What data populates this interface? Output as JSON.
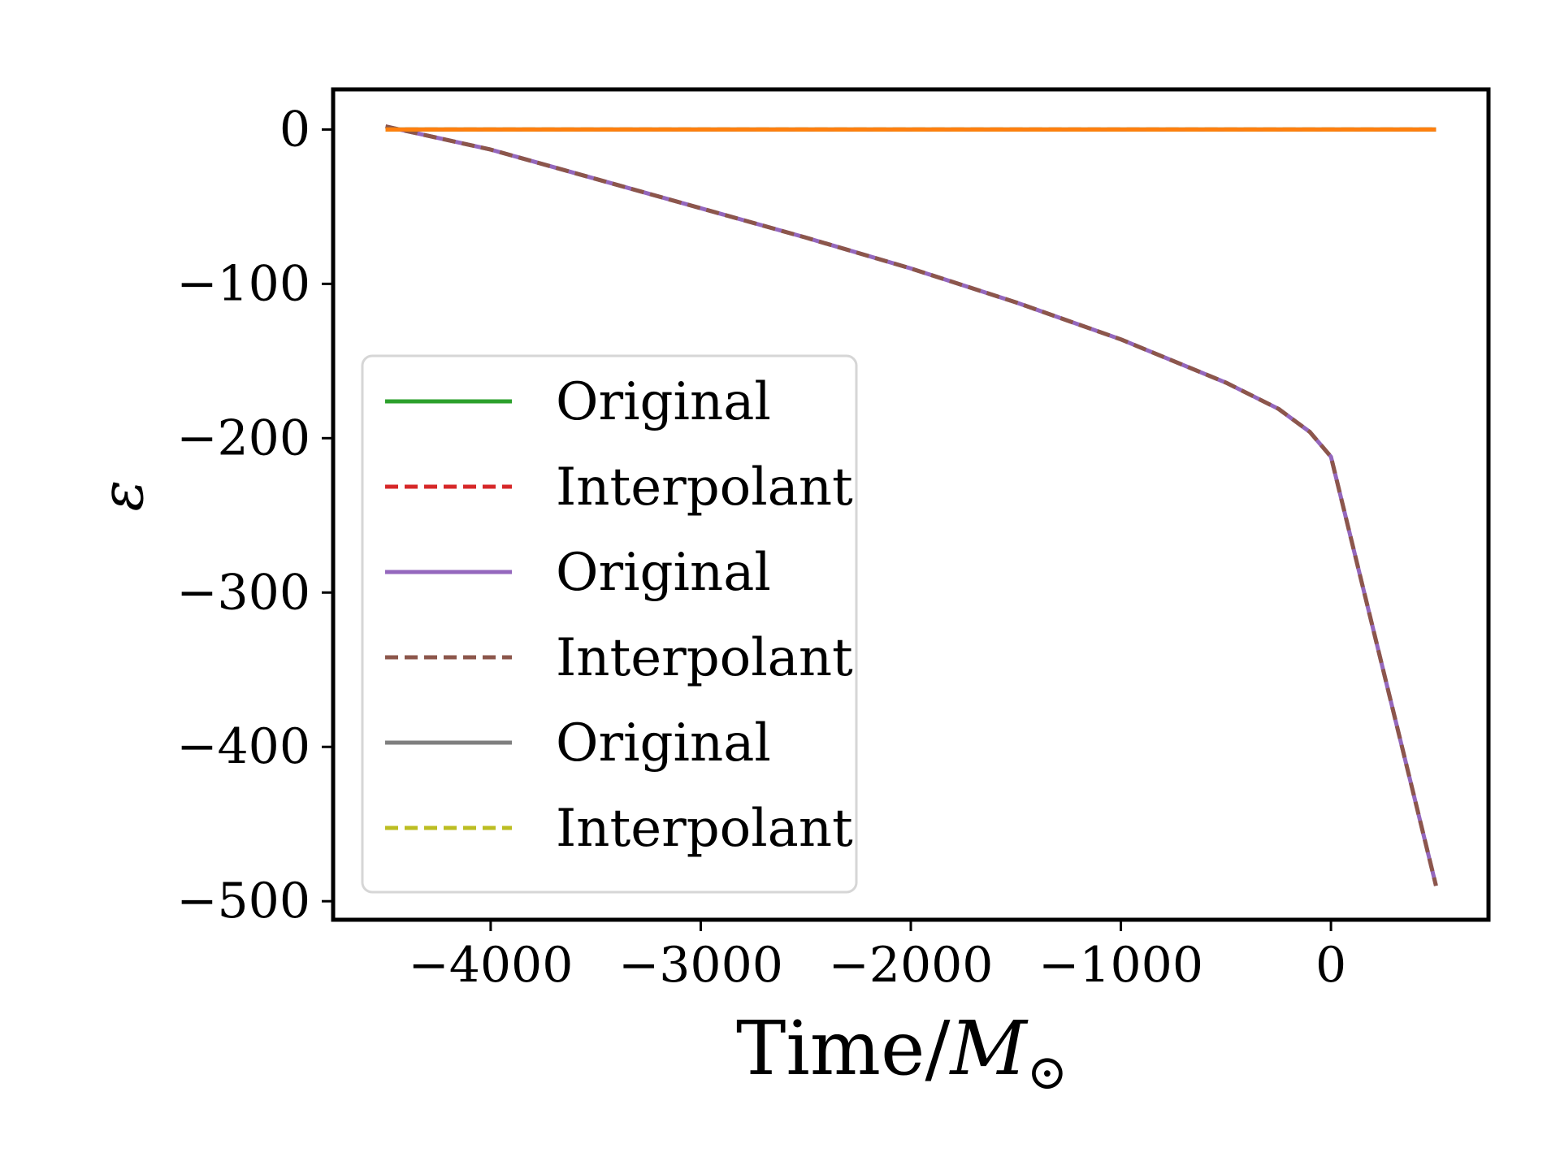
{
  "chart_data": {
    "type": "line",
    "xlabel": "Time/",
    "xlabel_symbol": "M",
    "xlabel_subscript": "⊙",
    "ylabel": "ε",
    "xlim": [
      -4750,
      750
    ],
    "ylim": [
      -512,
      26
    ],
    "xticks": [
      -4000,
      -3000,
      -2000,
      -1000,
      0
    ],
    "xtick_labels": [
      "−4000",
      "−3000",
      "−2000",
      "−1000",
      "0"
    ],
    "yticks": [
      0,
      -100,
      -200,
      -300,
      -400,
      -500
    ],
    "ytick_labels": [
      "0",
      "−100",
      "−200",
      "−300",
      "−400",
      "−500"
    ],
    "grid": false,
    "legend_position": "center-left",
    "series": [
      {
        "name": "Original",
        "color": "#2ca02c",
        "dash": false,
        "x": [
          -4500,
          500
        ],
        "y": [
          0,
          0
        ]
      },
      {
        "name": "Interpolant",
        "color": "#d62728",
        "dash": true,
        "x": [
          -4500,
          500
        ],
        "y": [
          0,
          0
        ]
      },
      {
        "name": "Original",
        "color": "#9467bd",
        "dash": false,
        "x": [
          -4500,
          -4000,
          -3500,
          -3000,
          -2500,
          -2000,
          -1500,
          -1000,
          -500,
          -250,
          -100,
          0,
          500
        ],
        "y": [
          2,
          -13,
          -32,
          -51,
          -70,
          -90,
          -112,
          -136,
          -164,
          -181,
          -196,
          -212,
          -490
        ]
      },
      {
        "name": "Interpolant",
        "color": "#8c564b",
        "dash": true,
        "x": [
          -4500,
          -4000,
          -3500,
          -3000,
          -2500,
          -2000,
          -1500,
          -1000,
          -500,
          -250,
          -100,
          0,
          500
        ],
        "y": [
          2,
          -13,
          -32,
          -51,
          -70,
          -90,
          -112,
          -136,
          -164,
          -181,
          -196,
          -212,
          -490
        ]
      },
      {
        "name": "Original",
        "color": "#7f7f7f",
        "dash": false,
        "x": [
          -4500,
          500
        ],
        "y": [
          0,
          0
        ]
      },
      {
        "name": "Interpolant",
        "color": "#bcbd22",
        "dash": true,
        "x": [
          -4500,
          500
        ],
        "y": [
          0,
          0
        ]
      },
      {
        "name": "",
        "color": "#ff7f0e",
        "dash": false,
        "x": [
          -4500,
          500
        ],
        "y": [
          0,
          0
        ]
      }
    ]
  }
}
